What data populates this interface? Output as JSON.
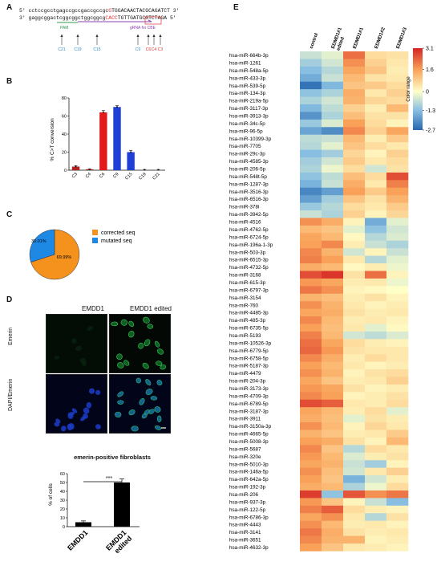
{
  "panels": {
    "a": "A",
    "b": "B",
    "c": "C",
    "d": "D",
    "e": "E"
  },
  "panel_a": {
    "prime5": "5'",
    "prime3": "3'",
    "top_seq_pre": "cctccgcctgagccgccgaccgccgc",
    "top_seq_red": "G",
    "top_seq_post": "TGGACAACTACGCAGATCT",
    "bottom_seq_pre": "gaggcggactcggcggctggcggcg",
    "bottom_seq_red": "CACC",
    "bottom_seq_post": "TGTTGATGCGTCTAGA",
    "pam_label": "PAM",
    "grna_label": "gRNA for CBE",
    "site_labels": [
      "C21",
      "C19",
      "C15",
      "C9",
      "C6",
      "C4",
      "C3"
    ],
    "site_colors": [
      "#2a8bc9",
      "#2a8bc9",
      "#2a8bc9",
      "#2a8bc9",
      "#d33",
      "#d33",
      "#d33"
    ]
  },
  "panel_b": {
    "chart_data": {
      "type": "bar",
      "categories": [
        "C3",
        "C4",
        "C6",
        "C9",
        "C15",
        "C19",
        "C21"
      ],
      "values": [
        4,
        1,
        64,
        70,
        20,
        0.5,
        0.5
      ],
      "errors": [
        1,
        0.5,
        2,
        1.5,
        2,
        0.3,
        0.3
      ],
      "colors": [
        "#b22222",
        "#b22222",
        "#e31a1c",
        "#1f3fd6",
        "#1f3fd6",
        "#777777",
        "#777777"
      ],
      "ylabel": "% C>T conversion",
      "ylim": [
        0,
        80
      ],
      "yticks": [
        0,
        20,
        40,
        60,
        80
      ]
    }
  },
  "panel_c": {
    "chart_data": {
      "type": "pie",
      "labels": [
        "corrected seq",
        "mutated seq"
      ],
      "values": [
        69.99,
        30.01
      ],
      "value_labels": [
        "69.99%",
        "30.01%"
      ],
      "colors": [
        "#f5921e",
        "#1e88e5"
      ]
    }
  },
  "panel_d": {
    "col_labels": [
      "EMDD1",
      "EMDD1 edited"
    ],
    "row_labels": [
      "Emerin",
      "DAPI/Emerin"
    ],
    "bar_chart": {
      "title": "emerin-positive fibroblasts",
      "chart_data": {
        "type": "bar",
        "categories": [
          "EMDD1",
          "EMDD1 edited"
        ],
        "values": [
          5,
          50
        ],
        "errors": [
          1.5,
          4
        ],
        "ylabel": "% of cells",
        "ylim": [
          0,
          60
        ],
        "yticks": [
          0,
          10,
          20,
          30,
          40,
          50,
          60
        ],
        "significance": "***"
      }
    }
  },
  "panel_e": {
    "columns": [
      "control",
      "EDMD1#1 edited",
      "EDMD1#1",
      "EDMD1#2",
      "EDMD1#3"
    ],
    "legend_title": "Color range",
    "legend_ticks": [
      "3.1",
      "1.6",
      "0",
      "-1.3",
      "-2.7"
    ],
    "chart_data": {
      "type": "heatmap",
      "rows": [
        {
          "name": "hsa-miR-664b-3p",
          "values": [
            -0.6,
            -0.3,
            2.2,
            0.6,
            0.5
          ]
        },
        {
          "name": "hsa-miR-1261",
          "values": [
            -1.0,
            -0.5,
            1.8,
            0.8,
            0.4
          ]
        },
        {
          "name": "hsa-miR-548a-5p",
          "values": [
            -1.3,
            -0.8,
            1.5,
            1.0,
            0.3
          ]
        },
        {
          "name": "hsa-miR-433-3p",
          "values": [
            -1.6,
            -0.6,
            1.2,
            0.5,
            0.4
          ]
        },
        {
          "name": "hsa-miR-539-5p",
          "values": [
            -2.5,
            -1.4,
            1.0,
            0.9,
            0.6
          ]
        },
        {
          "name": "hsa-miR-134-3p",
          "values": [
            -1.2,
            -0.9,
            1.4,
            0.4,
            0.8
          ]
        },
        {
          "name": "hsa-miR-219a-5p",
          "values": [
            -0.9,
            -0.5,
            1.3,
            0.7,
            0.6
          ]
        },
        {
          "name": "hsa-miR-3117-3p",
          "values": [
            -1.4,
            -0.7,
            0.8,
            0.3,
            1.2
          ]
        },
        {
          "name": "hsa-miR-3913-3p",
          "values": [
            -2.0,
            -0.9,
            1.1,
            0.5,
            0.5
          ]
        },
        {
          "name": "hsa-miR-34c-5p",
          "values": [
            -1.1,
            -0.4,
            1.6,
            0.6,
            0.2
          ]
        },
        {
          "name": "hsa-miR-96-5p",
          "values": [
            -1.7,
            -2.1,
            1.9,
            0.8,
            1.5
          ]
        },
        {
          "name": "hsa-miR-10399-3p",
          "values": [
            -0.7,
            -0.6,
            1.2,
            0.3,
            0.9
          ]
        },
        {
          "name": "hsa-miR-7705",
          "values": [
            -0.8,
            -0.3,
            1.0,
            0.6,
            0.4
          ]
        },
        {
          "name": "hsa-miR-29c-3p",
          "values": [
            -1.3,
            -1.0,
            0.7,
            0.2,
            0.8
          ]
        },
        {
          "name": "hsa-miR-4585-3p",
          "values": [
            -1.0,
            -0.5,
            0.9,
            0.4,
            0.6
          ]
        },
        {
          "name": "hsa-miR-206-5p",
          "values": [
            -0.9,
            -0.2,
            0.6,
            -0.5,
            0.5
          ]
        },
        {
          "name": "hsa-miR-548t-5p",
          "values": [
            -1.2,
            -0.7,
            1.1,
            0.6,
            2.6
          ]
        },
        {
          "name": "hsa-miR-1287-3p",
          "values": [
            -1.5,
            -0.6,
            1.4,
            0.4,
            2.0
          ]
        },
        {
          "name": "hsa-miR-3516-3p",
          "values": [
            -2.2,
            -1.8,
            1.6,
            0.9,
            1.6
          ]
        },
        {
          "name": "hsa-miR-6516-3p",
          "values": [
            -1.8,
            -1.0,
            1.0,
            0.5,
            1.3
          ]
        },
        {
          "name": "hsa-miR-378i",
          "values": [
            -1.1,
            -0.8,
            0.6,
            0.4,
            0.9
          ]
        },
        {
          "name": "hsa-miR-3942-5p",
          "values": [
            -0.6,
            -0.9,
            0.8,
            0.2,
            0.7
          ]
        },
        {
          "name": "hsa-miR-4516",
          "values": [
            1.8,
            1.4,
            0.2,
            -1.6,
            -0.3
          ]
        },
        {
          "name": "hsa-miR-4762-5p",
          "values": [
            1.2,
            1.0,
            -0.3,
            -1.2,
            -0.5
          ]
        },
        {
          "name": "hsa-miR-6724-5p",
          "values": [
            1.5,
            1.2,
            0.1,
            -0.8,
            -0.4
          ]
        },
        {
          "name": "hsa-miR-196a-1-3p",
          "values": [
            1.6,
            1.9,
            0.3,
            -0.6,
            -0.9
          ]
        },
        {
          "name": "hsa-miR-503-3p",
          "values": [
            1.9,
            1.3,
            -0.5,
            0.2,
            -0.6
          ]
        },
        {
          "name": "hsa-miR-6515-3p",
          "values": [
            2.0,
            1.6,
            0.4,
            -0.8,
            -0.3
          ]
        },
        {
          "name": "hsa-miR-4732-5p",
          "values": [
            1.4,
            1.2,
            0.1,
            0.3,
            -0.2
          ]
        },
        {
          "name": "hsa-miR-3168",
          "values": [
            2.6,
            2.9,
            0.5,
            2.2,
            0.2
          ]
        },
        {
          "name": "hsa-miR-615-3p",
          "values": [
            1.7,
            1.5,
            0.3,
            0.4,
            -0.2
          ]
        },
        {
          "name": "hsa-miR-6797-3p",
          "values": [
            2.1,
            1.8,
            0.2,
            0.1,
            0.0
          ]
        },
        {
          "name": "hsa-miR-3154",
          "values": [
            1.3,
            1.1,
            0.3,
            0.5,
            0.2
          ]
        },
        {
          "name": "hsa-miR-760",
          "values": [
            1.8,
            1.3,
            0.4,
            0.2,
            0.3
          ]
        },
        {
          "name": "hsa-miR-4485-3p",
          "values": [
            1.5,
            1.4,
            0.5,
            0.3,
            0.4
          ]
        },
        {
          "name": "hsa-miR-485-3p",
          "values": [
            1.9,
            1.2,
            0.3,
            0.4,
            0.2
          ]
        },
        {
          "name": "hsa-miR-6735-5p",
          "values": [
            1.6,
            1.1,
            0.4,
            -0.3,
            0.1
          ]
        },
        {
          "name": "hsa-miR-5193",
          "values": [
            2.0,
            1.2,
            -0.5,
            -0.7,
            -0.4
          ]
        },
        {
          "name": "hsa-miR-10526-3p",
          "values": [
            2.2,
            1.5,
            0.6,
            0.3,
            0.2
          ]
        },
        {
          "name": "hsa-miR-6779-5p",
          "values": [
            2.3,
            1.7,
            0.5,
            0.4,
            0.4
          ]
        },
        {
          "name": "hsa-miR-6758-5p",
          "values": [
            1.9,
            1.4,
            0.3,
            0.6,
            0.4
          ]
        },
        {
          "name": "hsa-miR-5187-3p",
          "values": [
            1.6,
            1.2,
            0.4,
            0.2,
            0.3
          ]
        },
        {
          "name": "hsa-miR-4479",
          "values": [
            1.8,
            1.3,
            0.2,
            0.5,
            0.6
          ]
        },
        {
          "name": "hsa-miR-204-3p",
          "values": [
            1.5,
            1.0,
            0.3,
            0.4,
            0.8
          ]
        },
        {
          "name": "hsa-miR-3173-3p",
          "values": [
            1.7,
            1.5,
            0.5,
            0.2,
            0.3
          ]
        },
        {
          "name": "hsa-miR-4709-3p",
          "values": [
            1.9,
            1.6,
            0.2,
            0.3,
            0.5
          ]
        },
        {
          "name": "hsa-miR-6789-5p",
          "values": [
            2.6,
            2.4,
            0.4,
            0.3,
            0.6
          ]
        },
        {
          "name": "hsa-miR-3187-3p",
          "values": [
            1.5,
            1.2,
            0.3,
            0.6,
            -0.3
          ]
        },
        {
          "name": "hsa-miR-3911",
          "values": [
            1.4,
            1.1,
            -0.3,
            0.5,
            0.3
          ]
        },
        {
          "name": "hsa-miR-3150a-3p",
          "values": [
            1.8,
            1.2,
            0.2,
            0.7,
            0.4
          ]
        },
        {
          "name": "hsa-miR-4665-5p",
          "values": [
            1.3,
            1.0,
            0.3,
            0.4,
            0.9
          ]
        },
        {
          "name": "hsa-miR-5008-3p",
          "values": [
            1.6,
            1.4,
            0.5,
            0.2,
            1.2
          ]
        },
        {
          "name": "hsa-miR-5687",
          "values": [
            1.9,
            1.0,
            -0.8,
            0.6,
            0.4
          ]
        },
        {
          "name": "hsa-miR-320e",
          "values": [
            1.7,
            1.2,
            -0.4,
            0.3,
            0.5
          ]
        },
        {
          "name": "hsa-miR-5010-3p",
          "values": [
            1.5,
            1.3,
            -0.6,
            -1.0,
            0.2
          ]
        },
        {
          "name": "hsa-miR-146a-5p",
          "values": [
            1.8,
            1.1,
            -0.5,
            0.4,
            0.8
          ]
        },
        {
          "name": "hsa-miR-642a-5p",
          "values": [
            1.6,
            1.0,
            -1.5,
            -0.5,
            0.3
          ]
        },
        {
          "name": "hsa-miR-192-3p",
          "values": [
            1.4,
            1.2,
            -0.9,
            -0.2,
            0.6
          ]
        },
        {
          "name": "hsa-miR-206",
          "values": [
            2.8,
            -1.2,
            2.5,
            1.8,
            2.1
          ]
        },
        {
          "name": "hsa-miR-937-3p",
          "values": [
            1.7,
            1.0,
            0.2,
            -0.6,
            -1.3
          ]
        },
        {
          "name": "hsa-miR-122-5p",
          "values": [
            2.0,
            2.4,
            0.6,
            0.3,
            0.2
          ]
        },
        {
          "name": "hsa-miR-6786-3p",
          "values": [
            1.5,
            1.8,
            0.4,
            -0.8,
            0.5
          ]
        },
        {
          "name": "hsa-miR-4443",
          "values": [
            1.8,
            1.2,
            0.3,
            0.4,
            0.2
          ]
        },
        {
          "name": "hsa-miR-3141",
          "values": [
            2.1,
            1.4,
            0.5,
            0.3,
            0.4
          ]
        },
        {
          "name": "hsa-miR-3651",
          "values": [
            1.9,
            1.3,
            1.3,
            0.2,
            0.3
          ]
        },
        {
          "name": "hsa-miR-4632-3p",
          "values": [
            1.6,
            1.0,
            0.4,
            0.3,
            0.2
          ]
        }
      ],
      "value_range": [
        -2.7,
        3.1
      ]
    }
  }
}
